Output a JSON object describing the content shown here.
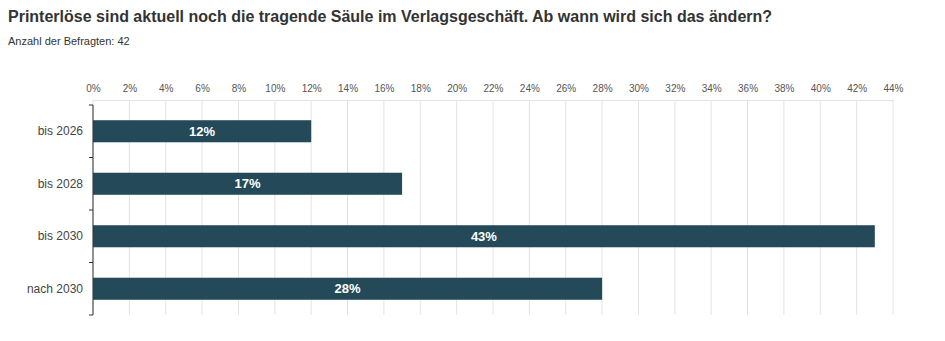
{
  "chart_data": {
    "type": "bar",
    "orientation": "horizontal",
    "title": "Printerlöse sind aktuell noch die tragende Säule im Verlagsgeschäft. Ab wann wird sich das ändern?",
    "subtitle": "Anzahl der Befragten: 42",
    "categories": [
      "bis 2026",
      "bis 2028",
      "bis 2030",
      "nach 2030"
    ],
    "values": [
      12,
      17,
      43,
      28
    ],
    "value_labels": [
      "12%",
      "17%",
      "43%",
      "28%"
    ],
    "color": "#244a5a",
    "xlim": [
      0,
      44
    ],
    "xticks": [
      {
        "value": 0,
        "label": "0%"
      },
      {
        "value": 2,
        "label": "2%"
      },
      {
        "value": 4,
        "label": "4%"
      },
      {
        "value": 6,
        "label": "6%"
      },
      {
        "value": 8,
        "label": "8%"
      },
      {
        "value": 10,
        "label": "10%"
      },
      {
        "value": 12,
        "label": "12%"
      },
      {
        "value": 14,
        "label": "14%"
      },
      {
        "value": 16,
        "label": "16%"
      },
      {
        "value": 18,
        "label": "18%"
      },
      {
        "value": 20,
        "label": "20%"
      },
      {
        "value": 22,
        "label": "22%"
      },
      {
        "value": 24,
        "label": "24%"
      },
      {
        "value": 26,
        "label": "26%"
      },
      {
        "value": 28,
        "label": "28%"
      },
      {
        "value": 30,
        "label": "30%"
      },
      {
        "value": 32,
        "label": "32%"
      },
      {
        "value": 34,
        "label": "34%"
      },
      {
        "value": 36,
        "label": "36%"
      },
      {
        "value": 38,
        "label": "38%"
      },
      {
        "value": 40,
        "label": "40%"
      },
      {
        "value": 42,
        "label": "42%"
      },
      {
        "value": 44,
        "label": "44%"
      }
    ],
    "grid": true,
    "data_labels": true
  }
}
